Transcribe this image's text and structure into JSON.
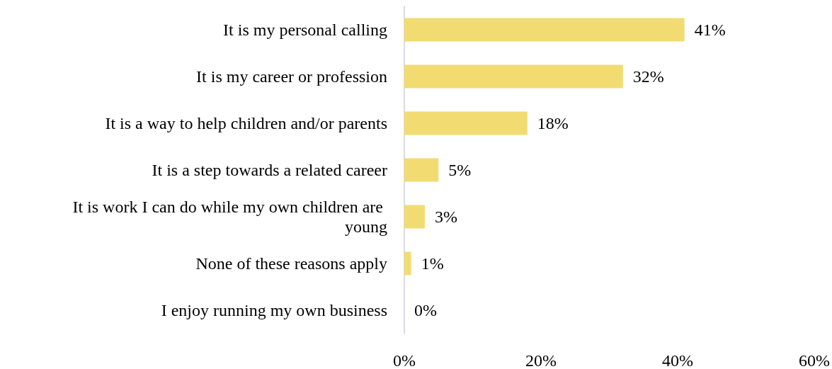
{
  "chart_data": {
    "type": "bar",
    "orientation": "horizontal",
    "categories": [
      "It is my personal calling",
      "It is my career or profession",
      "It is a way to help children and/or parents",
      "It is a step towards a related career",
      "It is work I can do while my own children are young",
      "None of these reasons apply",
      "I enjoy running my own business"
    ],
    "values": [
      41,
      32,
      18,
      5,
      3,
      1,
      0
    ],
    "color": "#f2dc72",
    "xlim": [
      0,
      60
    ],
    "xticks": [
      {
        "value": 0,
        "label": "0%"
      },
      {
        "value": 20,
        "label": "20%"
      },
      {
        "value": 40,
        "label": "40%"
      },
      {
        "value": 60,
        "label": "60%"
      }
    ],
    "value_labels": [
      "41%",
      "32%",
      "18%",
      "5%",
      "3%",
      "1%",
      "0%"
    ],
    "grid": false
  }
}
